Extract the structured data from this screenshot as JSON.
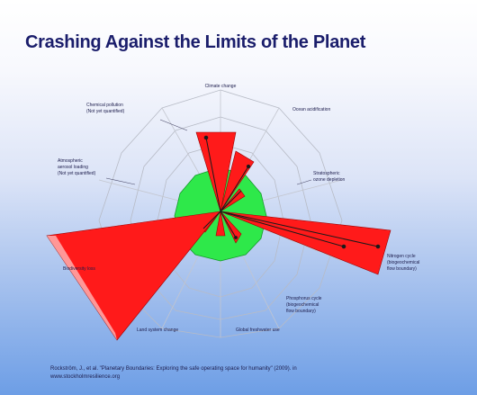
{
  "slide": {
    "title": "Crashing Against the Limits of the Planet",
    "citation_line1": "Rockström, J., et al.   \"Planetary Boundaries:  Exploring the safe operating space for humanity\" (2009).  in",
    "citation_line2": "www.stockholmresilience.org"
  },
  "diagram": {
    "labels": {
      "climate": "Climate change",
      "ocean": "Ocean acidification",
      "ozone": [
        "Stratospheric",
        "ozone depletion"
      ],
      "nitrogen": [
        "Nitrogen cycle",
        "(biogeochemical",
        "flow boundary)"
      ],
      "phosphorus": [
        "Phosphorus cycle",
        "(biogeochemical",
        "flow boundary)"
      ],
      "freshwater": "Global freshwater use",
      "land": "Land system change",
      "biodiversity": "Biodiversity loss",
      "aerosol": [
        "Atmospheric",
        "aerosol loading",
        "(Not yet quantified)"
      ],
      "chemical": [
        "Chemical pollution",
        "(Not yet quantified)"
      ]
    },
    "colors": {
      "safe_zone": "#2ee84a",
      "exceedance": "#ff1a1a",
      "grid": "#b7bbc6",
      "text": "#1b1b4b"
    }
  }
}
